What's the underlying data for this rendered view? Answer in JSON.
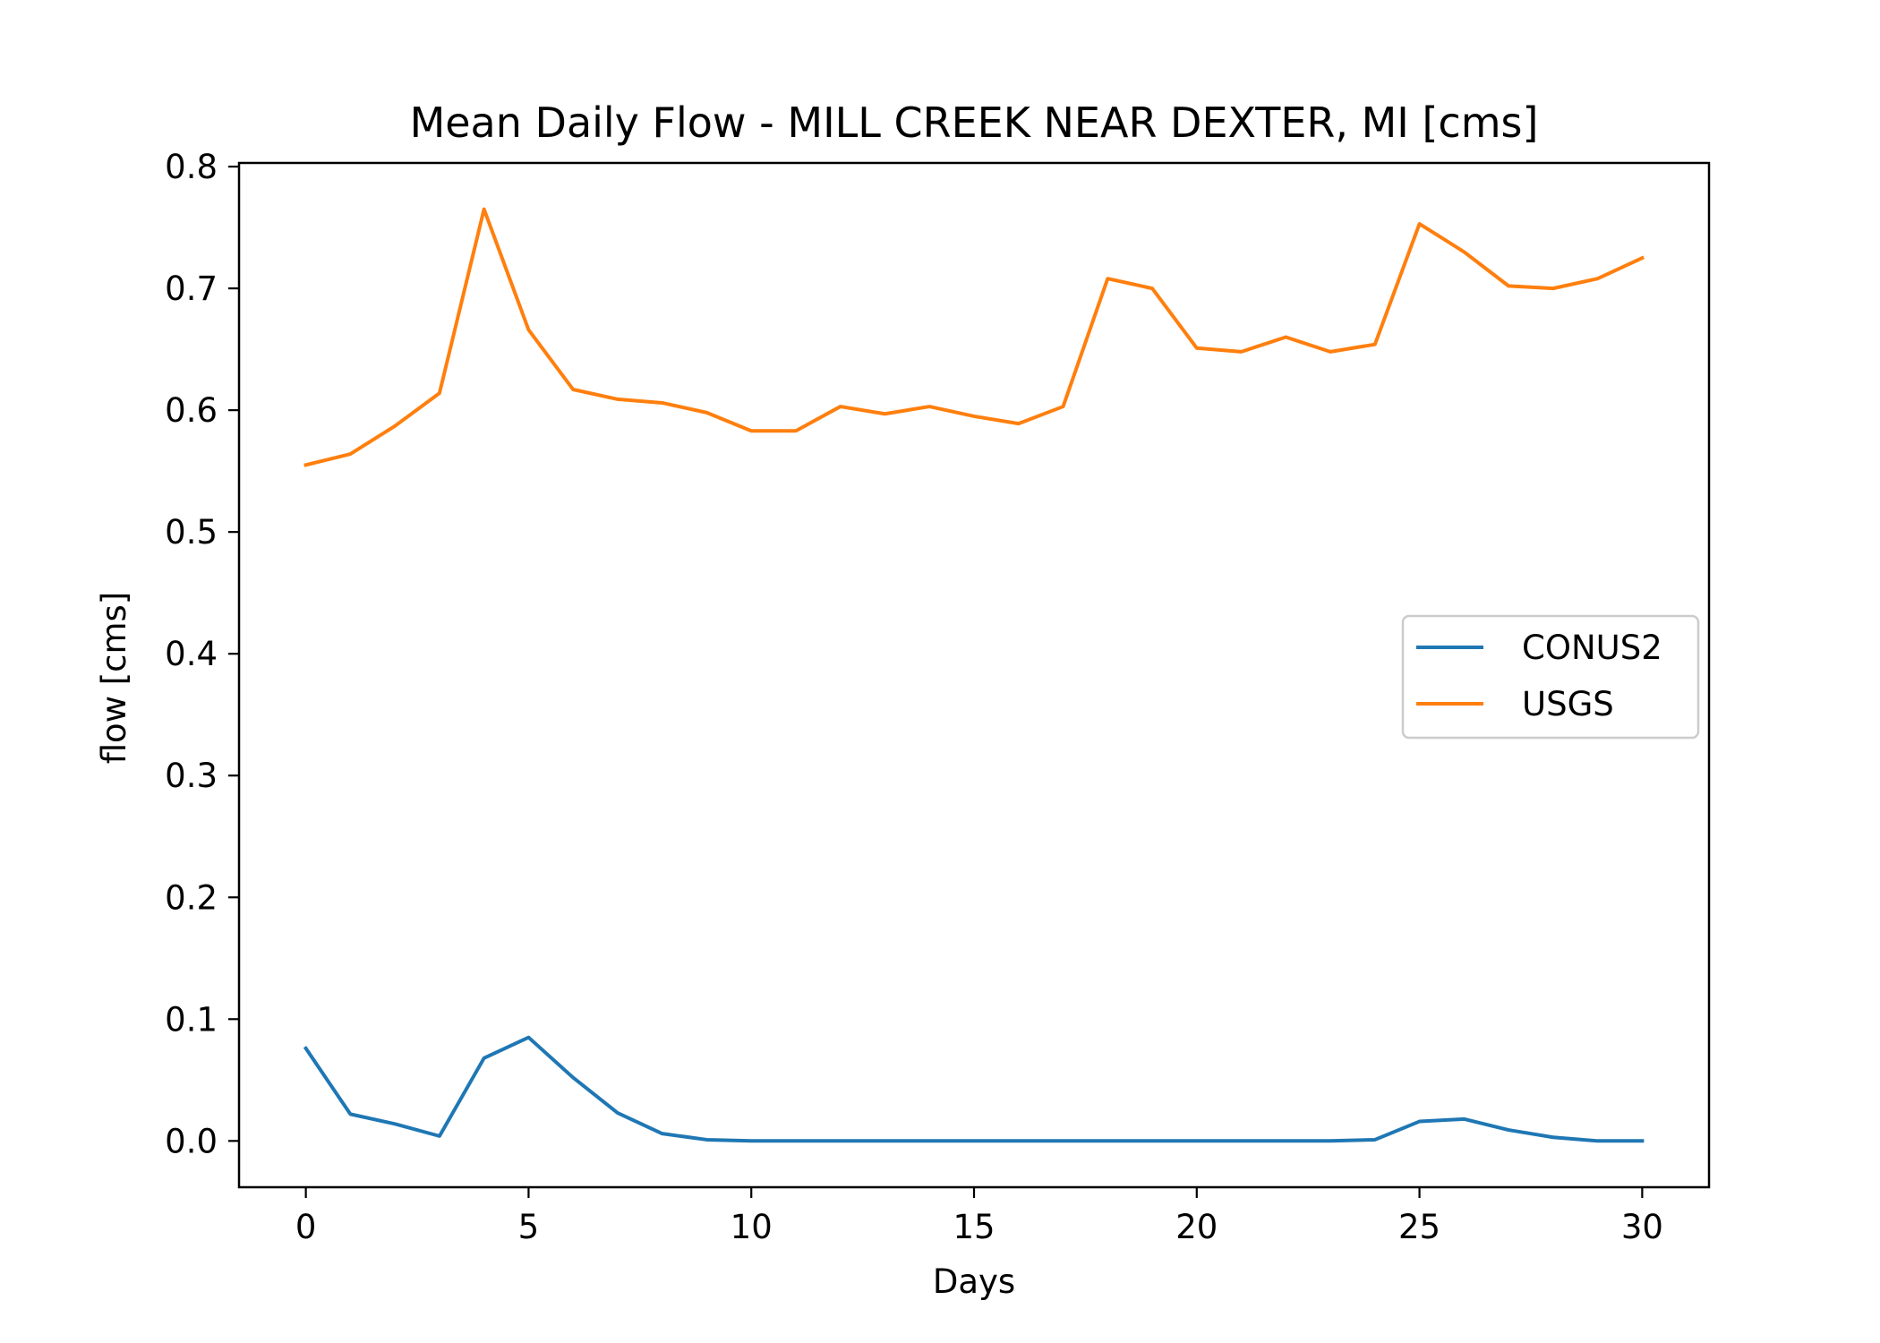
{
  "chart_data": {
    "type": "line",
    "title": "Mean Daily Flow - MILL CREEK NEAR DEXTER, MI [cms]",
    "xlabel": "Days",
    "ylabel": "flow [cms]",
    "xlim": [
      -1.5,
      31.5
    ],
    "ylim": [
      -0.038,
      0.803
    ],
    "xticks": [
      0,
      5,
      10,
      15,
      20,
      25,
      30
    ],
    "xtick_labels": [
      "0",
      "5",
      "10",
      "15",
      "20",
      "25",
      "30"
    ],
    "yticks": [
      0.0,
      0.1,
      0.2,
      0.3,
      0.4,
      0.5,
      0.6,
      0.7,
      0.8
    ],
    "ytick_labels": [
      "0.0",
      "0.1",
      "0.2",
      "0.3",
      "0.4",
      "0.5",
      "0.6",
      "0.7",
      "0.8"
    ],
    "grid": false,
    "legend_position": "center-right",
    "x": [
      0,
      1,
      2,
      3,
      4,
      5,
      6,
      7,
      8,
      9,
      10,
      11,
      12,
      13,
      14,
      15,
      16,
      17,
      18,
      19,
      20,
      21,
      22,
      23,
      24,
      25,
      26,
      27,
      28,
      29,
      30
    ],
    "series": [
      {
        "name": "CONUS2",
        "color": "#1f77b4",
        "values": [
          0.076,
          0.022,
          0.014,
          0.004,
          0.068,
          0.085,
          0.052,
          0.023,
          0.006,
          0.001,
          0.0,
          0.0,
          0.0,
          0.0,
          0.0,
          0.0,
          0.0,
          0.0,
          0.0,
          0.0,
          0.0,
          0.0,
          0.0,
          0.0,
          0.001,
          0.016,
          0.018,
          0.009,
          0.003,
          0.0,
          0.0
        ]
      },
      {
        "name": "USGS",
        "color": "#ff7f0e",
        "values": [
          0.555,
          0.564,
          0.587,
          0.614,
          0.765,
          0.666,
          0.617,
          0.609,
          0.606,
          0.598,
          0.583,
          0.583,
          0.603,
          0.597,
          0.603,
          0.595,
          0.589,
          0.603,
          0.708,
          0.7,
          0.651,
          0.648,
          0.66,
          0.648,
          0.654,
          0.753,
          0.73,
          0.702,
          0.7,
          0.708,
          0.725
        ]
      }
    ]
  }
}
